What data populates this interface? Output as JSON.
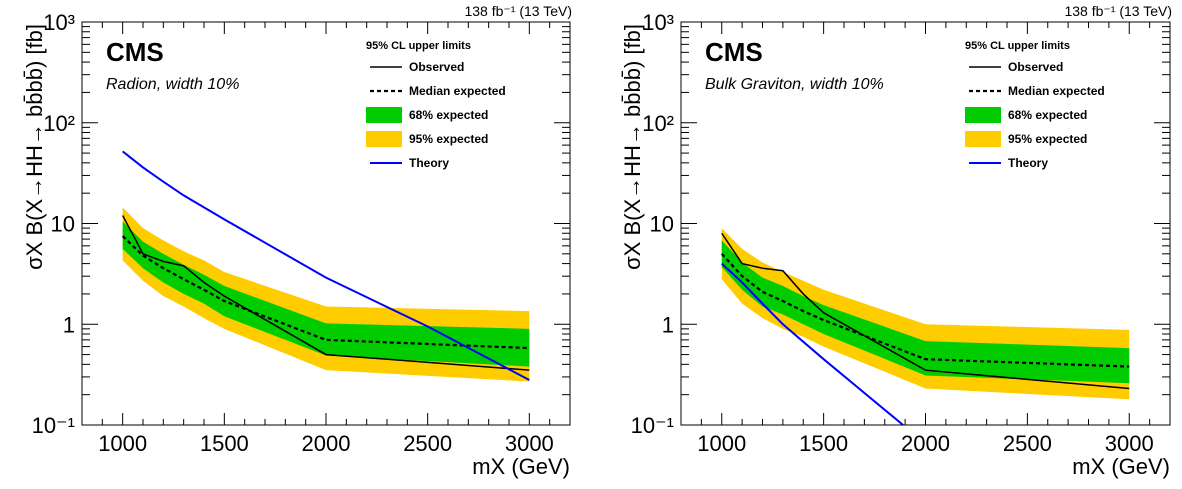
{
  "panels": [
    {
      "lumi": "138 fb⁻¹ (13 TeV)",
      "cms": "CMS",
      "model": "Radion, width 10%",
      "legend_header": "95% CL upper limits",
      "y_title": "σX B(X→HH→ bb̄bb̄) [fb]",
      "x_title": "mX (GeV)"
    },
    {
      "lumi": "138 fb⁻¹ (13 TeV)",
      "cms": "CMS",
      "model": "Bulk Graviton, width 10%",
      "legend_header": "95% CL upper limits",
      "y_title": "σX B(X→HH→ bb̄bb̄) [fb]",
      "x_title": "mX (GeV)"
    }
  ],
  "chart_data": [
    {
      "type": "line",
      "title": "",
      "xlabel": "mX (GeV)",
      "ylabel": "σX B(X→HH→ bb̄bb̄) [fb]",
      "xlim": [
        800,
        3200
      ],
      "ylim": [
        0.1,
        1000
      ],
      "yscale": "log",
      "xticks": [
        1000,
        1500,
        2000,
        2500,
        3000
      ],
      "yticks": [
        {
          "v": 0.1,
          "label": "10⁻¹"
        },
        {
          "v": 1,
          "label": "1"
        },
        {
          "v": 10,
          "label": "10"
        },
        {
          "v": 100,
          "label": "10²"
        },
        {
          "v": 1000,
          "label": "10³"
        }
      ],
      "legend_position": "top-right",
      "legend": [
        "Observed",
        "Median expected",
        "68% expected",
        "95% expected",
        "Theory"
      ],
      "colors": {
        "observed": "#000000",
        "expected": "#000000",
        "band68": "#00cc00",
        "band95": "#ffcc00",
        "theory": "#0000ff"
      },
      "x": [
        1000,
        1100,
        1200,
        1300,
        1400,
        1500,
        2000,
        3000
      ],
      "series": [
        {
          "name": "Observed",
          "values": [
            12,
            5,
            4.2,
            3.8,
            2.6,
            1.9,
            0.5,
            0.35
          ]
        },
        {
          "name": "Median expected",
          "values": [
            7.5,
            4.8,
            3.6,
            2.8,
            2.2,
            1.7,
            0.7,
            0.58
          ]
        },
        {
          "name": "68% expected",
          "low": [
            5.6,
            3.6,
            2.6,
            2.0,
            1.6,
            1.2,
            0.49,
            0.38
          ],
          "high": [
            10.5,
            6.6,
            5.0,
            3.9,
            3.1,
            2.4,
            1.02,
            0.9
          ]
        },
        {
          "name": "95% expected",
          "low": [
            4.3,
            2.7,
            1.9,
            1.5,
            1.15,
            0.9,
            0.35,
            0.27
          ],
          "high": [
            14.5,
            9.0,
            6.8,
            5.3,
            4.3,
            3.3,
            1.5,
            1.35
          ]
        },
        {
          "name": "Theory",
          "x": [
            1000,
            1100,
            1200,
            1300,
            1500,
            2000,
            2500,
            3000
          ],
          "values": [
            52,
            36,
            26,
            19,
            11,
            2.9,
            0.95,
            0.28
          ]
        }
      ]
    },
    {
      "type": "line",
      "title": "",
      "xlabel": "mX (GeV)",
      "ylabel": "σX B(X→HH→ bb̄bb̄) [fb]",
      "xlim": [
        800,
        3200
      ],
      "ylim": [
        0.1,
        1000
      ],
      "yscale": "log",
      "xticks": [
        1000,
        1500,
        2000,
        2500,
        3000
      ],
      "yticks": [
        {
          "v": 0.1,
          "label": "10⁻¹"
        },
        {
          "v": 1,
          "label": "1"
        },
        {
          "v": 10,
          "label": "10"
        },
        {
          "v": 100,
          "label": "10²"
        },
        {
          "v": 1000,
          "label": "10³"
        }
      ],
      "legend_position": "top-right",
      "legend": [
        "Observed",
        "Median expected",
        "68% expected",
        "95% expected",
        "Theory"
      ],
      "colors": {
        "observed": "#000000",
        "expected": "#000000",
        "band68": "#00cc00",
        "band95": "#ffcc00",
        "theory": "#0000ff"
      },
      "x": [
        1000,
        1100,
        1200,
        1300,
        1400,
        1500,
        2000,
        3000
      ],
      "series": [
        {
          "name": "Observed",
          "values": [
            8,
            4,
            3.6,
            3.4,
            2.0,
            1.3,
            0.35,
            0.23
          ]
        },
        {
          "name": "Median expected",
          "values": [
            5.0,
            3.0,
            2.1,
            1.7,
            1.35,
            1.1,
            0.45,
            0.38
          ]
        },
        {
          "name": "68% expected",
          "low": [
            3.7,
            2.2,
            1.5,
            1.25,
            1.0,
            0.8,
            0.31,
            0.26
          ],
          "high": [
            6.8,
            4.1,
            2.9,
            2.4,
            1.9,
            1.55,
            0.68,
            0.58
          ]
        },
        {
          "name": "95% expected",
          "low": [
            2.8,
            1.6,
            1.15,
            0.9,
            0.75,
            0.6,
            0.23,
            0.18
          ],
          "high": [
            9.0,
            5.6,
            4.1,
            3.3,
            2.7,
            2.2,
            1.0,
            0.88
          ]
        },
        {
          "name": "Theory",
          "x": [
            1000,
            1100,
            1200,
            1300,
            1500,
            1890
          ],
          "values": [
            4.0,
            2.6,
            1.6,
            1.0,
            0.45,
            0.1
          ]
        }
      ]
    }
  ]
}
